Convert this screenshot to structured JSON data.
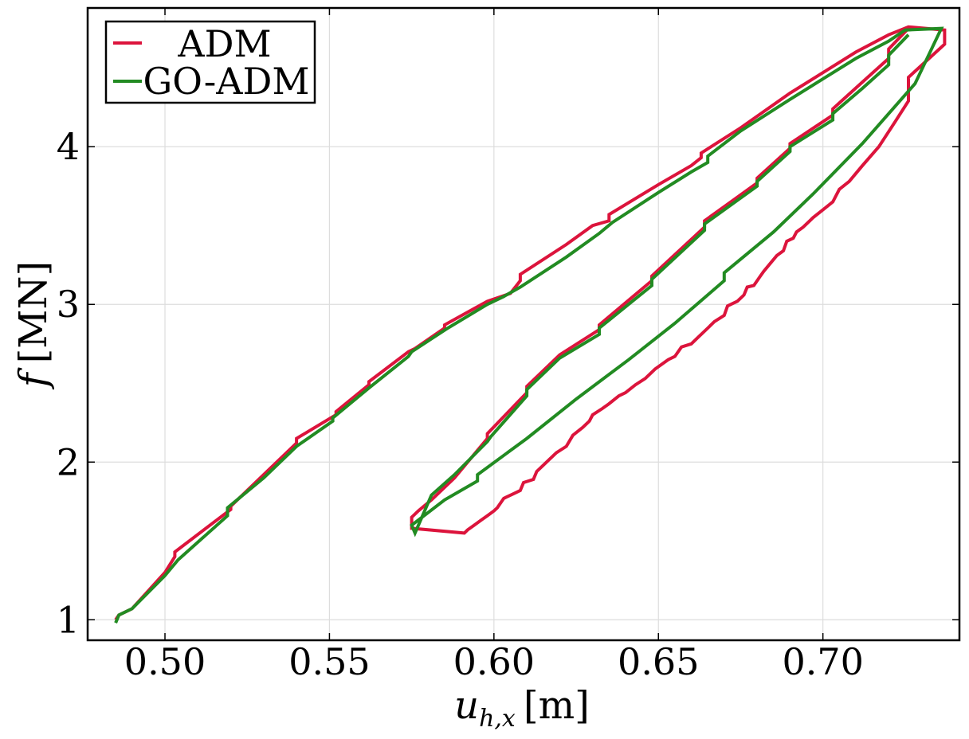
{
  "chart_data": {
    "type": "line",
    "xlabel": "u_{h,x} [m]",
    "xlabel_main": "u",
    "xlabel_sub": "h,x",
    "xlabel_unit": "[m]",
    "ylabel": "f [MN]",
    "ylabel_main": "f",
    "ylabel_unit": "[MN]",
    "xlim": [
      0.4765,
      0.7415
    ],
    "ylim": [
      0.87,
      4.88
    ],
    "xticks": [
      0.5,
      0.55,
      0.6,
      0.65,
      0.7
    ],
    "xtick_labels": [
      "0.50",
      "0.55",
      "0.60",
      "0.65",
      "0.70"
    ],
    "yticks": [
      1,
      2,
      3,
      4
    ],
    "ytick_labels": [
      "1",
      "2",
      "3",
      "4"
    ],
    "grid": true,
    "legend_position": "top-left",
    "colors": {
      "ADM": "#dc143c",
      "GO-ADM": "#228b22",
      "grid": "#dddddd",
      "frame": "#000000"
    },
    "series": [
      {
        "name": "ADM",
        "color": "#dc143c",
        "x": [
          0.485,
          0.486,
          0.49,
          0.5,
          0.503,
          0.503,
          0.52,
          0.52,
          0.54,
          0.54,
          0.552,
          0.552,
          0.562,
          0.562,
          0.574,
          0.576,
          0.585,
          0.585,
          0.598,
          0.605,
          0.608,
          0.608,
          0.622,
          0.63,
          0.635,
          0.635,
          0.65,
          0.66,
          0.663,
          0.663,
          0.675,
          0.69,
          0.7,
          0.71,
          0.72,
          0.726,
          0.737,
          0.737,
          0.726,
          0.726,
          0.722,
          0.717,
          0.712,
          0.708,
          0.705,
          0.703,
          0.7,
          0.697,
          0.694,
          0.692,
          0.691,
          0.689,
          0.688,
          0.686,
          0.684,
          0.682,
          0.681,
          0.679,
          0.677,
          0.676,
          0.674,
          0.671,
          0.67,
          0.667,
          0.665,
          0.662,
          0.66,
          0.657,
          0.655,
          0.653,
          0.649,
          0.646,
          0.643,
          0.64,
          0.638,
          0.635,
          0.633,
          0.63,
          0.629,
          0.627,
          0.624,
          0.622,
          0.619,
          0.617,
          0.615,
          0.613,
          0.612,
          0.609,
          0.608,
          0.606,
          0.603,
          0.601,
          0.6,
          0.598,
          0.596,
          0.594,
          0.592,
          0.591,
          0.575,
          0.575,
          0.577,
          0.581,
          0.588,
          0.598,
          0.598,
          0.61,
          0.61,
          0.62,
          0.632,
          0.632,
          0.648,
          0.648,
          0.664,
          0.664,
          0.68,
          0.68,
          0.69,
          0.69,
          0.703,
          0.703,
          0.712,
          0.72,
          0.72,
          0.726
        ],
        "y": [
          1.0,
          1.03,
          1.07,
          1.3,
          1.4,
          1.43,
          1.7,
          1.72,
          2.12,
          2.15,
          2.3,
          2.32,
          2.49,
          2.51,
          2.7,
          2.72,
          2.85,
          2.87,
          3.02,
          3.07,
          3.15,
          3.19,
          3.38,
          3.5,
          3.53,
          3.57,
          3.76,
          3.88,
          3.93,
          3.96,
          4.12,
          4.34,
          4.47,
          4.6,
          4.71,
          4.76,
          4.74,
          4.65,
          4.44,
          4.29,
          4.16,
          4.0,
          3.88,
          3.78,
          3.73,
          3.65,
          3.6,
          3.55,
          3.49,
          3.46,
          3.42,
          3.4,
          3.34,
          3.31,
          3.26,
          3.21,
          3.18,
          3.12,
          3.11,
          3.06,
          3.02,
          2.99,
          2.93,
          2.89,
          2.85,
          2.79,
          2.75,
          2.73,
          2.67,
          2.65,
          2.59,
          2.53,
          2.49,
          2.44,
          2.42,
          2.37,
          2.34,
          2.3,
          2.26,
          2.22,
          2.17,
          2.1,
          2.06,
          2.02,
          1.98,
          1.94,
          1.89,
          1.87,
          1.82,
          1.8,
          1.77,
          1.71,
          1.69,
          1.66,
          1.63,
          1.6,
          1.57,
          1.55,
          1.58,
          1.65,
          1.69,
          1.76,
          1.9,
          2.15,
          2.18,
          2.44,
          2.48,
          2.68,
          2.84,
          2.87,
          3.15,
          3.18,
          3.49,
          3.53,
          3.77,
          3.8,
          3.99,
          4.02,
          4.2,
          4.24,
          4.41,
          4.56,
          4.62,
          4.75
        ]
      },
      {
        "name": "GO-ADM",
        "color": "#228b22",
        "x": [
          0.485,
          0.486,
          0.49,
          0.5,
          0.504,
          0.519,
          0.519,
          0.53,
          0.54,
          0.551,
          0.551,
          0.562,
          0.574,
          0.575,
          0.586,
          0.598,
          0.603,
          0.608,
          0.622,
          0.632,
          0.636,
          0.65,
          0.66,
          0.665,
          0.665,
          0.675,
          0.69,
          0.7,
          0.71,
          0.72,
          0.725,
          0.736,
          0.728,
          0.712,
          0.697,
          0.685,
          0.67,
          0.67,
          0.655,
          0.641,
          0.625,
          0.61,
          0.595,
          0.595,
          0.585,
          0.575,
          0.576,
          0.581,
          0.588,
          0.598,
          0.599,
          0.61,
          0.61,
          0.62,
          0.632,
          0.632,
          0.648,
          0.648,
          0.664,
          0.664,
          0.68,
          0.68,
          0.69,
          0.69,
          0.703,
          0.703,
          0.712,
          0.72,
          0.72,
          0.726
        ],
        "y": [
          0.98,
          1.03,
          1.07,
          1.28,
          1.38,
          1.66,
          1.71,
          1.9,
          2.1,
          2.26,
          2.28,
          2.47,
          2.67,
          2.7,
          2.85,
          3.0,
          3.05,
          3.11,
          3.3,
          3.45,
          3.52,
          3.71,
          3.84,
          3.9,
          3.94,
          4.1,
          4.3,
          4.43,
          4.56,
          4.67,
          4.74,
          4.75,
          4.4,
          4.02,
          3.7,
          3.46,
          3.2,
          3.15,
          2.88,
          2.65,
          2.4,
          2.15,
          1.92,
          1.88,
          1.76,
          1.6,
          1.55,
          1.79,
          1.92,
          2.13,
          2.16,
          2.42,
          2.46,
          2.66,
          2.81,
          2.85,
          3.12,
          3.16,
          3.47,
          3.51,
          3.75,
          3.78,
          3.97,
          4.0,
          4.17,
          4.21,
          4.37,
          4.52,
          4.58,
          4.71
        ]
      }
    ]
  }
}
